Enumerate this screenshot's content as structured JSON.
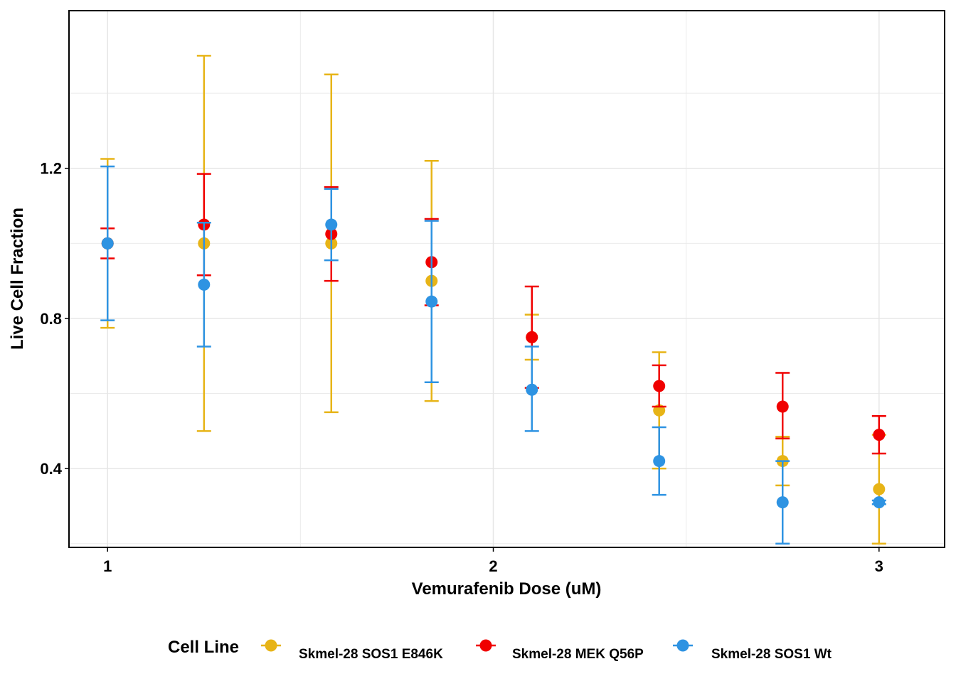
{
  "chart_data": {
    "type": "scatter",
    "xlabel": "Vemurafenib Dose (uM)",
    "ylabel": "Live Cell Fraction",
    "x_ticks": [
      1,
      2,
      3
    ],
    "y_ticks": [
      0.4,
      0.8,
      1.2
    ],
    "xlim": [
      0.9,
      3.17
    ],
    "ylim": [
      0.19,
      1.62
    ],
    "grid": true,
    "legend": {
      "title": "Cell Line",
      "position": "bottom"
    },
    "series": [
      {
        "name": "Skmel-28 SOS1 E846K",
        "color": "#E7B417",
        "points": [
          {
            "x": 1.0,
            "y": 1.0,
            "lo": 0.775,
            "hi": 1.225
          },
          {
            "x": 1.25,
            "y": 1.0,
            "lo": 0.5,
            "hi": 1.5
          },
          {
            "x": 1.58,
            "y": 1.0,
            "lo": 0.55,
            "hi": 1.45
          },
          {
            "x": 1.84,
            "y": 0.9,
            "lo": 0.58,
            "hi": 1.22
          },
          {
            "x": 2.1,
            "y": 0.75,
            "lo": 0.69,
            "hi": 0.81
          },
          {
            "x": 2.43,
            "y": 0.555,
            "lo": 0.4,
            "hi": 0.71
          },
          {
            "x": 2.75,
            "y": 0.42,
            "lo": 0.355,
            "hi": 0.485
          },
          {
            "x": 3.0,
            "y": 0.345,
            "lo": 0.2,
            "hi": 0.49
          }
        ]
      },
      {
        "name": "Skmel-28 MEK Q56P",
        "color": "#F00000",
        "points": [
          {
            "x": 1.0,
            "y": 1.0,
            "lo": 0.96,
            "hi": 1.04
          },
          {
            "x": 1.25,
            "y": 1.05,
            "lo": 0.915,
            "hi": 1.185
          },
          {
            "x": 1.58,
            "y": 1.025,
            "lo": 0.9,
            "hi": 1.15
          },
          {
            "x": 1.84,
            "y": 0.95,
            "lo": 0.835,
            "hi": 1.065
          },
          {
            "x": 2.1,
            "y": 0.75,
            "lo": 0.615,
            "hi": 0.885
          },
          {
            "x": 2.43,
            "y": 0.62,
            "lo": 0.565,
            "hi": 0.675
          },
          {
            "x": 2.75,
            "y": 0.565,
            "lo": 0.48,
            "hi": 0.655
          },
          {
            "x": 3.0,
            "y": 0.49,
            "lo": 0.44,
            "hi": 0.54
          }
        ]
      },
      {
        "name": "Skmel-28 SOS1 Wt",
        "color": "#2E93E2",
        "points": [
          {
            "x": 1.0,
            "y": 1.0,
            "lo": 0.795,
            "hi": 1.205
          },
          {
            "x": 1.25,
            "y": 0.89,
            "lo": 0.725,
            "hi": 1.055
          },
          {
            "x": 1.58,
            "y": 1.05,
            "lo": 0.955,
            "hi": 1.145
          },
          {
            "x": 1.84,
            "y": 0.845,
            "lo": 0.63,
            "hi": 1.06
          },
          {
            "x": 2.1,
            "y": 0.61,
            "lo": 0.5,
            "hi": 0.725
          },
          {
            "x": 2.43,
            "y": 0.42,
            "lo": 0.33,
            "hi": 0.51
          },
          {
            "x": 2.75,
            "y": 0.31,
            "lo": 0.2,
            "hi": 0.42
          },
          {
            "x": 3.0,
            "y": 0.31,
            "lo": 0.305,
            "hi": 0.315
          }
        ]
      }
    ]
  }
}
